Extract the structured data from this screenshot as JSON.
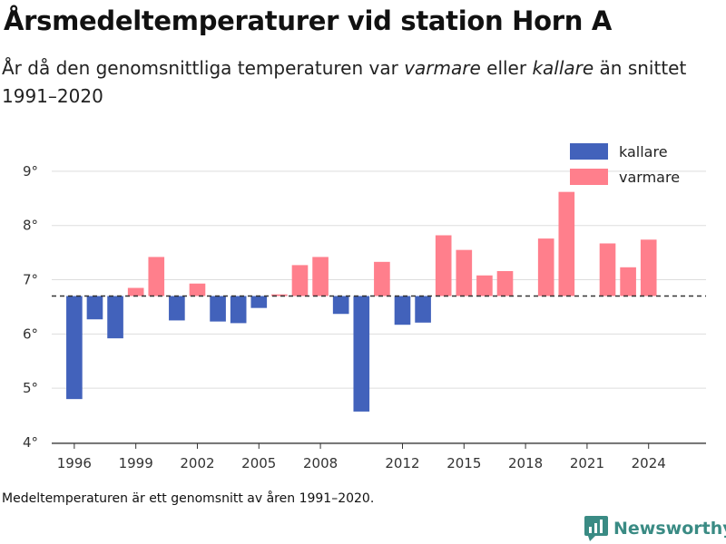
{
  "title": "Årsmedeltemperaturer vid station Horn A",
  "subtitle": {
    "part1": "År då den genomsnittliga temperaturen var ",
    "warm_word": "varmare",
    "part2": " eller ",
    "cold_word": "kallare",
    "part3": " än snittet 1991–2020"
  },
  "footnote": "Medeltemperaturen är ett genomsnitt av åren 1991–2020.",
  "brand": {
    "name": "Newsworthy",
    "icon": "newsworthy-logo-icon",
    "color": "#3a8b84"
  },
  "chart_data": {
    "type": "bar",
    "baseline": 6.7,
    "ylim": [
      4,
      9.4
    ],
    "yticks": [
      4,
      5,
      6,
      7,
      8,
      9
    ],
    "ytick_labels": [
      "4°",
      "5°",
      "6°",
      "7°",
      "8°",
      "9°"
    ],
    "xlim": [
      1994.9,
      2026.8
    ],
    "xticks": [
      1996,
      1999,
      2002,
      2005,
      2008,
      2012,
      2015,
      2018,
      2021,
      2024
    ],
    "grid": true,
    "legend_position": "top-right",
    "colors": {
      "kallare": "#4262bb",
      "varmare": "#ff7f8c",
      "baseline": "#333333",
      "grid": "#dddddd"
    },
    "legend": [
      {
        "key": "kallare",
        "label": "kallare"
      },
      {
        "key": "varmare",
        "label": "varmare"
      }
    ],
    "years": [
      1996,
      1997,
      1998,
      1999,
      2000,
      2001,
      2002,
      2003,
      2004,
      2005,
      2006,
      2007,
      2008,
      2009,
      2010,
      2011,
      2012,
      2013,
      2014,
      2015,
      2016,
      2017,
      2019,
      2020,
      2022,
      2023,
      2024
    ],
    "values": [
      4.8,
      6.27,
      5.92,
      6.85,
      7.42,
      6.25,
      6.93,
      6.23,
      6.2,
      6.48,
      6.73,
      7.27,
      7.42,
      6.37,
      4.57,
      7.33,
      6.17,
      6.21,
      7.82,
      7.55,
      7.08,
      7.16,
      7.76,
      8.62,
      7.67,
      7.23,
      7.74
    ]
  }
}
